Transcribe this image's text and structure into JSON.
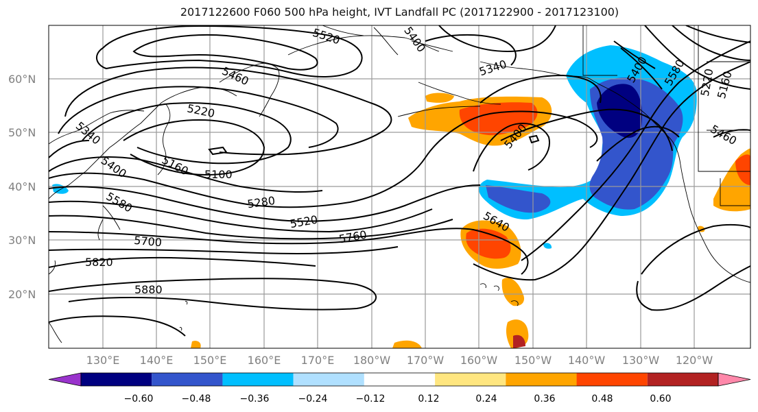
{
  "title": "2017122600 F060 500 hPa height, IVT Landfall PC (2017122900 - 2017123100)",
  "lat_ticks": [
    "60°N",
    "50°N",
    "40°N",
    "30°N",
    "20°N"
  ],
  "lon_ticks": [
    "130°E",
    "140°E",
    "150°E",
    "160°E",
    "170°E",
    "180°W",
    "170°W",
    "160°W",
    "150°W",
    "140°W",
    "130°W",
    "120°W"
  ],
  "colorbar": {
    "ticks": [
      "−0.60",
      "−0.48",
      "−0.36",
      "−0.24",
      "−0.12",
      "0.12",
      "0.24",
      "0.36",
      "0.48",
      "0.60"
    ],
    "colors": [
      "#9933cc",
      "#000080",
      "#3355cc",
      "#00bfff",
      "#b0e0ff",
      "#ffffff",
      "#ffe680",
      "#ffa500",
      "#ff4500",
      "#b22222",
      "#ff88aa"
    ]
  },
  "contour_labels": [
    "5520",
    "5400",
    "5340",
    "5460",
    "5220",
    "5100",
    "5160",
    "5340",
    "5400",
    "5580",
    "5280",
    "5520",
    "5700",
    "5760",
    "5820",
    "5880",
    "5640",
    "5400",
    "5580",
    "5220",
    "5160",
    "5460",
    "5400"
  ]
}
